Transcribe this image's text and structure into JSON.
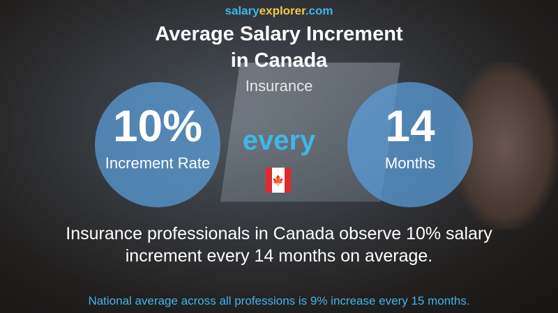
{
  "logo": {
    "part1": "salary",
    "part2": "explorer",
    "part3": ".com"
  },
  "title_line1": "Average Salary Increment",
  "title_line2": "in Canada",
  "subtitle": "Insurance",
  "rate": {
    "value": "10%",
    "label": "Increment Rate"
  },
  "connector": "every",
  "period": {
    "value": "14",
    "label": "Months"
  },
  "flag_icon": "canada-flag",
  "description_line1": "Insurance professionals in Canada observe 10% salary",
  "description_line2": "increment every 14 months on average.",
  "national_average": "National average across all professions is 9% increase every 15 months.",
  "colors": {
    "accent": "#3fb6e8",
    "logo_yellow": "#f0c84a",
    "circle": "#5ba0dc"
  }
}
